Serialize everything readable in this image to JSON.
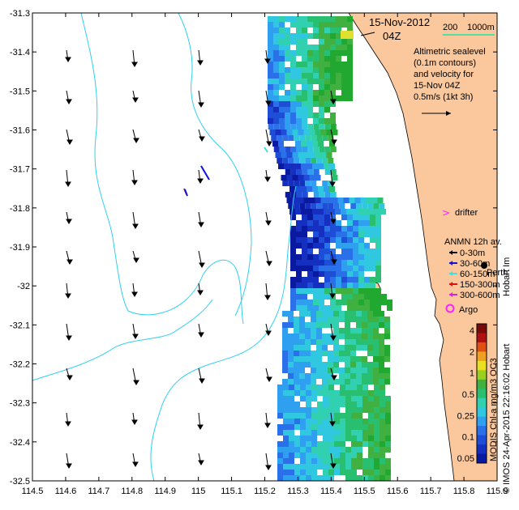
{
  "map": {
    "title_date": "15-Nov-2012",
    "title_time": "04Z",
    "scale_labels": [
      "200",
      "1000m"
    ],
    "legend_text": [
      "Altimetric sealevel",
      "(0.1m contours)",
      "and velocity for",
      "15-Nov 04Z",
      "0.5m/s (1kt 3h)"
    ],
    "drifter_label": "drifter",
    "anmn_title": "ANMN 12h av.",
    "anmn_items": [
      {
        "label": "0-30m",
        "color": "#000000"
      },
      {
        "label": "30-60m",
        "color": "#1010e0"
      },
      {
        "label": "60-150m",
        "color": "#40e0e0"
      },
      {
        "label": "150-300m",
        "color": "#e01010"
      },
      {
        "label": "300-600m",
        "color": "#e020e0"
      }
    ],
    "argo_label": "Argo",
    "place_label": "Perth",
    "place_label2": "Hobart Im",
    "colorbar_ticks": [
      "4",
      "2",
      "1",
      "0.5",
      "0.25",
      "0.1",
      "0.05"
    ],
    "colorbar_label": "MODIS Chl-a mg/m3 OC3",
    "credit": "© IMOS 24-Apr-2015 22:16:02 Hobart",
    "x_ticks": [
      "114.5",
      "114.6",
      "114.7",
      "114.8",
      "114.9",
      "115",
      "115.1",
      "115.2",
      "115.3",
      "115.4",
      "115.5",
      "115.6",
      "115.7",
      "115.8",
      "115.9"
    ],
    "y_ticks": [
      "-31.3",
      "-31.4",
      "-31.5",
      "-31.6",
      "-31.7",
      "-31.8",
      "-31.9",
      "-32",
      "-32.1",
      "-32.2",
      "-32.3",
      "-32.4",
      "-32.5"
    ],
    "colors": {
      "land": "#fac89c",
      "contour": "#30d0f0",
      "scale_bar": "#50e0a0",
      "drifter": "#ff20ff"
    }
  }
}
